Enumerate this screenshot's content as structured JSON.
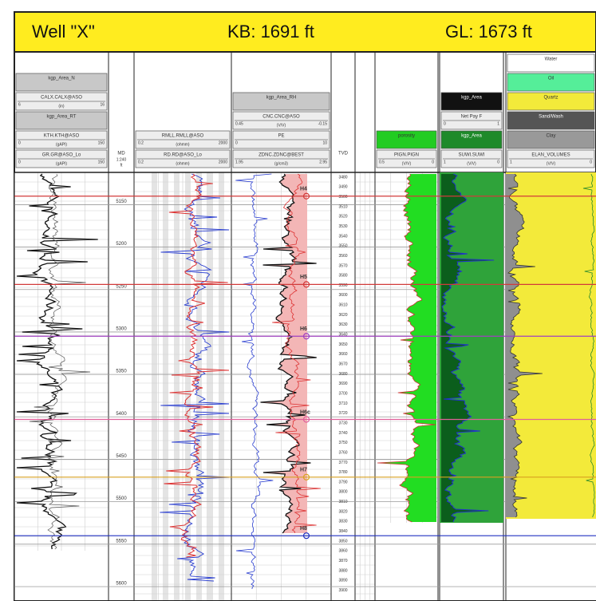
{
  "chart_data": {
    "type": "well_log",
    "header": {
      "well": "Well \"X\"",
      "kb": "KB: 1691 ft",
      "gl": "GL: 1673 ft"
    },
    "ylim": [
      5112,
      5616
    ],
    "md_label": "MD",
    "md_scale": "1:240",
    "md_unit": "ft",
    "yticks": [
      5150,
      5200,
      5250,
      5300,
      5350,
      5400,
      5450,
      5500,
      5550,
      5600
    ],
    "tvd_label": "TVD",
    "tvd_ticks": [
      3480,
      3490,
      3500,
      3510,
      3520,
      3530,
      3540,
      3550,
      3560,
      3570,
      3580,
      3590,
      3600,
      3610,
      3620,
      3630,
      3640,
      3650,
      3660,
      3670,
      3680,
      3690,
      3700,
      3710,
      3720,
      3730,
      3740,
      3750,
      3760,
      3770,
      3780,
      3790,
      3800,
      3810,
      3820,
      3830,
      3840,
      3850,
      3860,
      3870,
      3880,
      3890,
      3900
    ],
    "markers": [
      {
        "name": "H4",
        "depth": 5140,
        "color": "#d23a3a"
      },
      {
        "name": "H5",
        "depth": 5244,
        "color": "#d23a3a"
      },
      {
        "name": "H6",
        "depth": 5305,
        "color": "#a040c0"
      },
      {
        "name": "H6c",
        "depth": 5403,
        "color": "#e0609a"
      },
      {
        "name": "H7",
        "depth": 5471,
        "color": "#d8a020"
      },
      {
        "name": "H8",
        "depth": 5540,
        "color": "#2030c0"
      }
    ],
    "tracks": [
      {
        "headers": [
          {
            "title": "GR.GR@ASO_Lo",
            "left": "0",
            "right": "150",
            "unit": "(gAPI)"
          },
          {
            "title": "KTH.KTH@ASO",
            "left": "0",
            "right": "150",
            "unit": "(gAPI)"
          },
          {
            "title": "kgp_Area_RT",
            "color": "#c8c8c8"
          },
          {
            "title": "CALX.CALX@ASO",
            "left": "6",
            "right": "16",
            "unit": "(in)"
          },
          {
            "title": "kgp_Area_N",
            "color": "#c8c8c8"
          }
        ]
      },
      {
        "headers": [
          {
            "title": "RD.RD@ASO_Lo",
            "left": "0.2",
            "right": "2000",
            "unit": "(ohmm)"
          },
          {
            "title": "RMLL.RMLL@ASO",
            "left": "0.2",
            "right": "2000",
            "unit": "(ohmm)"
          }
        ]
      },
      {
        "headers": [
          {
            "title": "ZDNC.ZDNC@BEST",
            "left": "1.95",
            "right": "2.95",
            "unit": "(g/cm3)"
          },
          {
            "title": "PE",
            "left": "0",
            "right": "10"
          },
          {
            "title": "CNC.CNC@ASO",
            "left": "0.45",
            "right": "-0.15",
            "unit": "(V/V)"
          },
          {
            "title": "kgp_Area_RH",
            "color": "#c8c8c8"
          }
        ]
      },
      {
        "headers": [
          {
            "title": "PIGN.PIGN",
            "left": "0.5",
            "right": "0",
            "unit": "(V/V)"
          },
          {
            "title": "porosity",
            "color": "#22cc22"
          }
        ]
      },
      {
        "headers": [
          {
            "title": "SUWI.SUWI",
            "left": "1",
            "right": "0",
            "unit": "(V/V)"
          },
          {
            "title": "kgp_Area",
            "color": "#1e8a2a"
          },
          {
            "title": "Net Pay F",
            "left": "0",
            "right": "1"
          },
          {
            "title": "kgp_Area",
            "color": "#111111"
          }
        ]
      },
      {
        "headers": [
          {
            "title": "ELAN_VOLUMES",
            "left": "1",
            "right": "0",
            "unit": "(V/V)"
          },
          {
            "title": "Clay",
            "color": "#999999"
          },
          {
            "title": "Sand/Wash",
            "color": "#555555"
          },
          {
            "title": "Quartz",
            "color": "#f3ea3a"
          },
          {
            "title": "Oil",
            "color": "#55ee99"
          },
          {
            "title": "Water",
            "color": "#ffffff"
          }
        ]
      }
    ]
  }
}
